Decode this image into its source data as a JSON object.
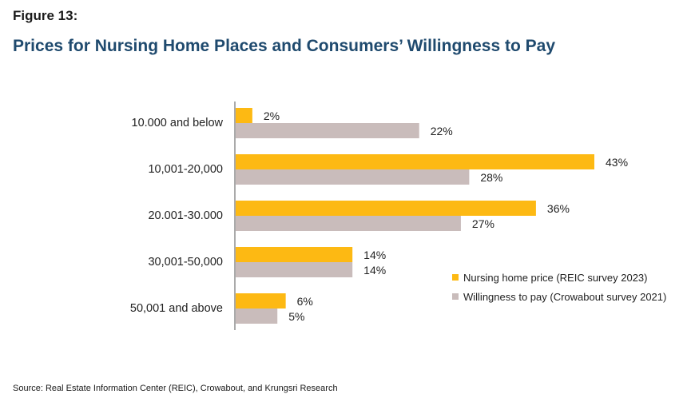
{
  "figure_label": "Figure 13:",
  "title": "Prices for Nursing Home Places and Consumers’ Willingness to Pay",
  "source": "Source: Real Estate Information Center (REIC), Crowabout, and Krungsri Research",
  "chart_data": {
    "type": "bar",
    "orientation": "horizontal",
    "categories": [
      "10.000 and below",
      "10,001-20,000",
      "20.001-30.000",
      "30,001-50,000",
      "50,001 and above"
    ],
    "series": [
      {
        "name": "Nursing home price (REIC survey 2023)",
        "values": [
          2,
          43,
          36,
          14,
          6
        ],
        "labels": [
          "2%",
          "43%",
          "36%",
          "14%",
          "6%"
        ],
        "color": "#FDB913"
      },
      {
        "name": "Willingness to pay (Crowabout survey 2021)",
        "values": [
          22,
          28,
          27,
          14,
          5
        ],
        "labels": [
          "22%",
          "28%",
          "27%",
          "14%",
          "5%"
        ],
        "color": "#C9BCBB"
      }
    ],
    "xlim": [
      0,
      45
    ],
    "unit": "%",
    "grid": false,
    "legend_position": "bottom-right"
  }
}
